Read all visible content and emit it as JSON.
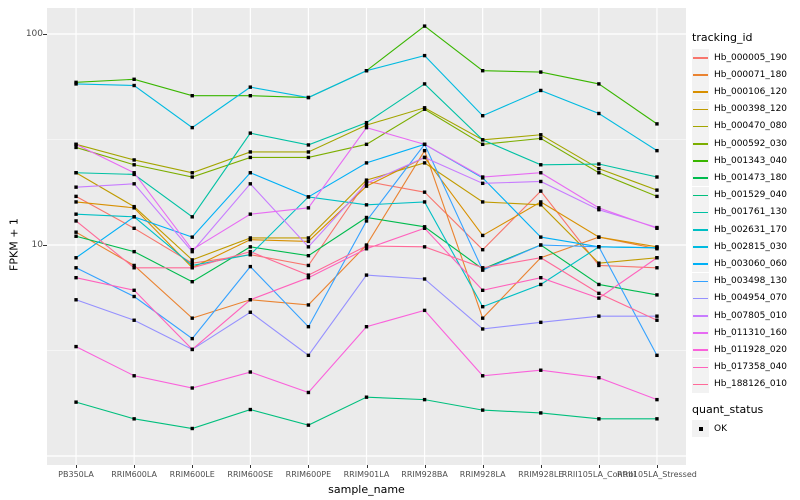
{
  "figure": {
    "y_axis_title": "FPKM + 1",
    "x_axis_title": "sample_name",
    "y_tick_labels": [
      "100",
      "10"
    ]
  },
  "legend": {
    "tracking_title": "tracking_id",
    "quant_title": "quant_status",
    "quant_items": [
      {
        "label": "OK",
        "marker": "black-square"
      }
    ]
  },
  "colors": {
    "panel_bg": "#EBEBEB",
    "grid_major": "#FFFFFF",
    "grid_minor": "#FFFFFF",
    "tick_text": "#4D4D4D",
    "axis_tick": "#333333",
    "point": "#000000",
    "legend_key_bg": "#F2F2F2"
  },
  "chart_data": {
    "type": "line",
    "title": "",
    "xlabel": "sample_name",
    "ylabel": "FPKM + 1",
    "y_scale": "log10",
    "ylim": [
      1.05,
      135
    ],
    "y_major_ticks": [
      1,
      10,
      100
    ],
    "y_labeled_ticks": [
      10,
      100
    ],
    "y_minor_ticks": [
      3.162,
      31.62
    ],
    "grid": true,
    "legend_position": "right",
    "point_marker": "filled-black-square (quant_status = OK)",
    "categories": [
      "PB350LA",
      "RRIM600LA",
      "RRIM600LE",
      "RRIM600SE",
      "RRIM600PE",
      "RRIM901LA",
      "RRIM928BA",
      "RRIM928LA",
      "RRIM928LE",
      "RRII105LA_Control",
      "RRII105LA_Stressed"
    ],
    "series": [
      {
        "name": "Hb_000005_190",
        "color": "#F8766D",
        "values": [
          17,
          12,
          8.2,
          9,
          8,
          20,
          17.8,
          9.5,
          18,
          8,
          7.8
        ]
      },
      {
        "name": "Hb_000071_180",
        "color": "#EA8331",
        "values": [
          11.5,
          8,
          4.5,
          5.5,
          5.2,
          10,
          28,
          4.5,
          8.7,
          10.9,
          9.6
        ]
      },
      {
        "name": "Hb_000106_120",
        "color": "#D89000",
        "values": [
          16,
          15,
          7.8,
          10.6,
          10.4,
          19,
          26,
          11.1,
          16,
          10.9,
          9.8
        ]
      },
      {
        "name": "Hb_000398_120",
        "color": "#C09B00",
        "values": [
          22,
          15.2,
          8.5,
          10.8,
          10.8,
          20.3,
          24.5,
          16,
          15.5,
          8.2,
          8.7
        ]
      },
      {
        "name": "Hb_000470_080",
        "color": "#A3A500",
        "values": [
          30,
          25.3,
          22,
          27.6,
          27.6,
          37,
          44.7,
          31.5,
          33.3,
          23,
          18.2
        ]
      },
      {
        "name": "Hb_000592_030",
        "color": "#7CAE00",
        "values": [
          29,
          24,
          21,
          26,
          26,
          30,
          44,
          30,
          32,
          22,
          17
        ]
      },
      {
        "name": "Hb_001343_040",
        "color": "#39B600",
        "values": [
          59,
          61,
          51,
          51,
          50,
          67,
          109,
          67,
          66,
          58,
          37.5
        ]
      },
      {
        "name": "Hb_001473_180",
        "color": "#00BB4E",
        "values": [
          11,
          9.3,
          6.7,
          9.8,
          8.9,
          13.5,
          12.2,
          7.7,
          10,
          6.5,
          5.8
        ]
      },
      {
        "name": "Hb_001529_040",
        "color": "#00BF7D",
        "values": [
          1.8,
          1.5,
          1.35,
          1.66,
          1.4,
          1.9,
          1.85,
          1.65,
          1.6,
          1.5,
          1.5
        ]
      },
      {
        "name": "Hb_001761_130",
        "color": "#00C1A3",
        "values": [
          22,
          21.6,
          13.6,
          33.9,
          29.8,
          38,
          58,
          31.5,
          24,
          24.2,
          21
        ]
      },
      {
        "name": "Hb_002631_170",
        "color": "#00BFC4",
        "values": [
          14,
          13.6,
          8,
          9,
          16.9,
          15.5,
          16,
          5.1,
          6.5,
          9.8,
          9.7
        ]
      },
      {
        "name": "Hb_002815_030",
        "color": "#00BAE0",
        "values": [
          58,
          57,
          36,
          56,
          50,
          67,
          79,
          41,
          54,
          42,
          28
        ]
      },
      {
        "name": "Hb_003060_060",
        "color": "#00B0F6",
        "values": [
          8.7,
          13.6,
          10.9,
          22,
          16.9,
          24.5,
          30,
          20.8,
          10.9,
          9.8,
          9.7
        ]
      },
      {
        "name": "Hb_003498_130",
        "color": "#35A2FF",
        "values": [
          7.8,
          5.7,
          3.6,
          7.9,
          4.1,
          13,
          30,
          7.6,
          10,
          9.8,
          3
        ]
      },
      {
        "name": "Hb_004954_070",
        "color": "#9590FF",
        "values": [
          5.5,
          4.4,
          3.2,
          4.8,
          3,
          7.2,
          6.9,
          4,
          4.3,
          4.6,
          4.6
        ]
      },
      {
        "name": "Hb_007805_010",
        "color": "#C77CFF",
        "values": [
          18.8,
          19.5,
          9.3,
          19.5,
          9.8,
          19.6,
          26,
          19.6,
          20,
          14.7,
          12.1
        ]
      },
      {
        "name": "Hb_011310_160",
        "color": "#E76BF3",
        "values": [
          30,
          22,
          9.5,
          14,
          15,
          36,
          30,
          21,
          22,
          15,
          12
        ]
      },
      {
        "name": "Hb_011928_020",
        "color": "#FA62DB",
        "values": [
          3.3,
          2.4,
          2.1,
          2.5,
          2,
          4.1,
          4.9,
          2.4,
          2.55,
          2.35,
          1.85
        ]
      },
      {
        "name": "Hb_017358_040",
        "color": "#FF62BC",
        "values": [
          7,
          6.1,
          3.2,
          5.5,
          7,
          9.6,
          12,
          6.1,
          7,
          5.6,
          8.7
        ]
      },
      {
        "name": "Hb_188126_010",
        "color": "#FF6A98",
        "values": [
          13,
          7.8,
          7.8,
          9.3,
          7.2,
          9.9,
          9.8,
          7.8,
          8.7,
          5.9,
          4.4
        ]
      }
    ]
  }
}
